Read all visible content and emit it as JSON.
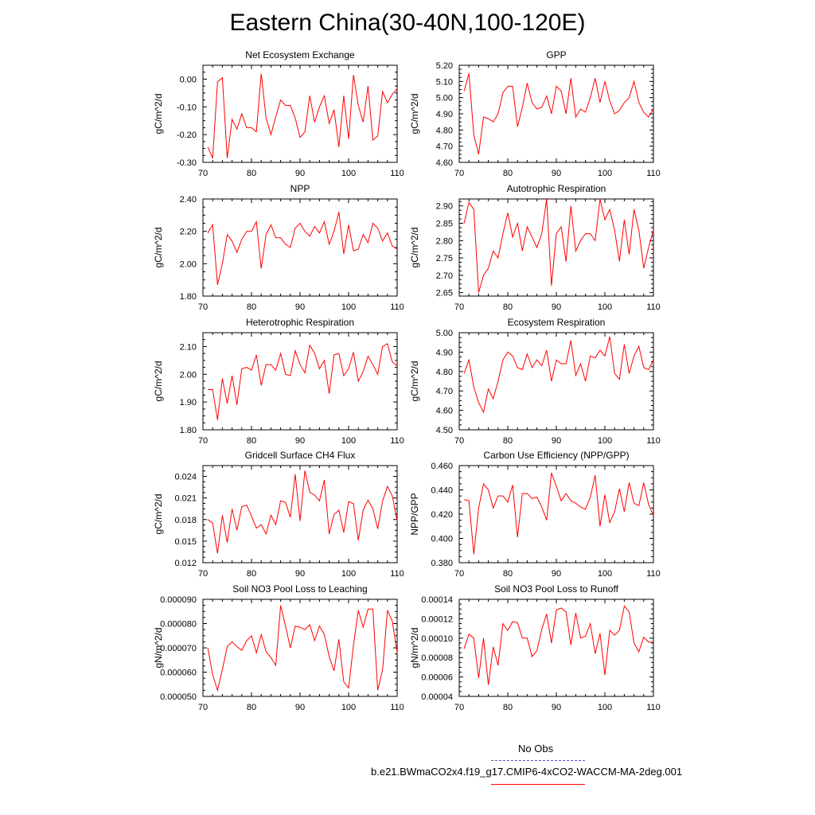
{
  "title": "Eastern China(30-40N,100-120E)",
  "colors": {
    "series": "#ff0000",
    "obs": "#5555cc",
    "axis": "#000000"
  },
  "legend": {
    "obs_label": "No Obs",
    "model_label": "b.e21.BWmaCO2x4.f19_g17.CMIP6-4xCO2-WACCM-MA-2deg.001"
  },
  "chart_data": [
    {
      "type": "line",
      "title": "Net Ecosystem Exchange",
      "xlabel": "",
      "ylabel": "gC/m^2/d",
      "xlim": [
        70,
        110
      ],
      "ylim": [
        -0.3,
        0.05
      ],
      "xticks": [
        70,
        80,
        90,
        100,
        110
      ],
      "yticks": [
        -0.3,
        -0.2,
        -0.1,
        0.0
      ],
      "yticklabels": [
        "-0.30",
        "-0.20",
        "-0.10",
        "0.00"
      ],
      "x_start": 71,
      "values": [
        -0.245,
        -0.285,
        -0.01,
        0.005,
        -0.285,
        -0.145,
        -0.18,
        -0.125,
        -0.175,
        -0.175,
        -0.19,
        0.02,
        -0.14,
        -0.2,
        -0.135,
        -0.075,
        -0.095,
        -0.095,
        -0.14,
        -0.21,
        -0.19,
        -0.06,
        -0.155,
        -0.1,
        -0.06,
        -0.16,
        -0.11,
        -0.245,
        -0.06,
        -0.215,
        0.015,
        -0.095,
        -0.155,
        -0.025,
        -0.22,
        -0.205,
        -0.045,
        -0.085,
        -0.055,
        -0.035
      ]
    },
    {
      "type": "line",
      "title": "GPP",
      "xlabel": "",
      "ylabel": "gC/m^2/d",
      "xlim": [
        70,
        110
      ],
      "ylim": [
        4.6,
        5.2
      ],
      "xticks": [
        70,
        80,
        90,
        100,
        110
      ],
      "yticks": [
        4.6,
        4.7,
        4.8,
        4.9,
        5.0,
        5.1,
        5.2
      ],
      "yticklabels": [
        "4.60",
        "4.70",
        "4.80",
        "4.90",
        "5.00",
        "5.10",
        "5.20"
      ],
      "x_start": 71,
      "values": [
        5.04,
        5.15,
        4.77,
        4.65,
        4.88,
        4.87,
        4.85,
        4.9,
        5.03,
        5.07,
        5.07,
        4.82,
        4.94,
        5.09,
        4.97,
        4.93,
        4.94,
        5.01,
        4.9,
        5.07,
        5.04,
        4.9,
        5.12,
        4.88,
        4.93,
        4.91,
        5.0,
        5.12,
        4.97,
        5.1,
        4.98,
        4.9,
        4.92,
        4.97,
        5.0,
        5.1,
        4.97,
        4.91,
        4.88,
        4.93
      ]
    },
    {
      "type": "line",
      "title": "NPP",
      "xlabel": "",
      "ylabel": "gC/m^2/d",
      "xlim": [
        70,
        110
      ],
      "ylim": [
        1.8,
        2.4
      ],
      "xticks": [
        70,
        80,
        90,
        100,
        110
      ],
      "yticks": [
        1.8,
        2.0,
        2.2,
        2.4
      ],
      "yticklabels": [
        "1.80",
        "2.00",
        "2.20",
        "2.40"
      ],
      "x_start": 71,
      "values": [
        2.19,
        2.24,
        1.87,
        2.0,
        2.18,
        2.14,
        2.07,
        2.15,
        2.2,
        2.2,
        2.26,
        1.97,
        2.18,
        2.24,
        2.16,
        2.16,
        2.12,
        2.1,
        2.22,
        2.25,
        2.2,
        2.17,
        2.23,
        2.19,
        2.26,
        2.12,
        2.2,
        2.32,
        2.06,
        2.24,
        2.08,
        2.09,
        2.18,
        2.13,
        2.25,
        2.22,
        2.14,
        2.19,
        2.11,
        2.09
      ]
    },
    {
      "type": "line",
      "title": "Autotrophic Respiration",
      "xlabel": "",
      "ylabel": "gC/m^2/d",
      "xlim": [
        70,
        110
      ],
      "ylim": [
        2.64,
        2.92
      ],
      "xticks": [
        70,
        80,
        90,
        100,
        110
      ],
      "yticks": [
        2.65,
        2.7,
        2.75,
        2.8,
        2.85,
        2.9
      ],
      "yticklabels": [
        "2.65",
        "2.70",
        "2.75",
        "2.80",
        "2.85",
        "2.90"
      ],
      "x_start": 71,
      "values": [
        2.85,
        2.91,
        2.89,
        2.65,
        2.7,
        2.72,
        2.77,
        2.75,
        2.82,
        2.88,
        2.81,
        2.85,
        2.77,
        2.84,
        2.81,
        2.78,
        2.82,
        2.92,
        2.67,
        2.82,
        2.84,
        2.74,
        2.9,
        2.77,
        2.8,
        2.82,
        2.82,
        2.8,
        2.92,
        2.86,
        2.89,
        2.83,
        2.74,
        2.86,
        2.76,
        2.89,
        2.83,
        2.72,
        2.78,
        2.83
      ]
    },
    {
      "type": "line",
      "title": "Heterotrophic Respiration",
      "xlabel": "",
      "ylabel": "gC/m^2/d",
      "xlim": [
        70,
        110
      ],
      "ylim": [
        1.8,
        2.15
      ],
      "xticks": [
        70,
        80,
        90,
        100,
        110
      ],
      "yticks": [
        1.8,
        1.9,
        2.0,
        2.1
      ],
      "yticklabels": [
        "1.80",
        "1.90",
        "2.00",
        "2.10"
      ],
      "x_start": 71,
      "values": [
        1.945,
        1.945,
        1.835,
        1.985,
        1.895,
        1.995,
        1.89,
        2.02,
        2.025,
        2.015,
        2.07,
        1.96,
        2.035,
        2.035,
        2.015,
        2.075,
        2.0,
        1.995,
        2.085,
        2.035,
        2.005,
        2.105,
        2.075,
        2.02,
        2.05,
        1.93,
        2.07,
        2.075,
        1.995,
        2.02,
        2.08,
        1.975,
        2.01,
        2.065,
        2.035,
        2.0,
        2.1,
        2.11,
        2.045,
        2.03
      ]
    },
    {
      "type": "line",
      "title": "Ecosystem Respiration",
      "xlabel": "",
      "ylabel": "gC/m^2/d",
      "xlim": [
        70,
        110
      ],
      "ylim": [
        4.5,
        5.0
      ],
      "xticks": [
        70,
        80,
        90,
        100,
        110
      ],
      "yticks": [
        4.5,
        4.6,
        4.7,
        4.8,
        4.9,
        5.0
      ],
      "yticklabels": [
        "4.50",
        "4.60",
        "4.70",
        "4.80",
        "4.90",
        "5.00"
      ],
      "x_start": 71,
      "values": [
        4.79,
        4.86,
        4.72,
        4.64,
        4.59,
        4.71,
        4.66,
        4.75,
        4.86,
        4.9,
        4.88,
        4.82,
        4.81,
        4.89,
        4.82,
        4.86,
        4.83,
        4.91,
        4.75,
        4.86,
        4.84,
        4.84,
        4.96,
        4.78,
        4.84,
        4.75,
        4.88,
        4.87,
        4.91,
        4.88,
        4.98,
        4.79,
        4.76,
        4.94,
        4.79,
        4.88,
        4.93,
        4.82,
        4.81,
        4.86
      ]
    },
    {
      "type": "line",
      "title": "Gridcell Surface CH4 Flux",
      "xlabel": "",
      "ylabel": "gC/m^2/d",
      "xlim": [
        70,
        110
      ],
      "ylim": [
        0.012,
        0.0255
      ],
      "xticks": [
        70,
        80,
        90,
        100,
        110
      ],
      "yticks": [
        0.012,
        0.015,
        0.018,
        0.021,
        0.024
      ],
      "yticklabels": [
        "0.012",
        "0.015",
        "0.018",
        "0.021",
        "0.024"
      ],
      "x_start": 71,
      "values": [
        0.018,
        0.0175,
        0.0133,
        0.0186,
        0.0148,
        0.0195,
        0.0165,
        0.0198,
        0.02,
        0.0185,
        0.0168,
        0.0173,
        0.016,
        0.0186,
        0.0173,
        0.0206,
        0.0204,
        0.0183,
        0.0243,
        0.0178,
        0.0248,
        0.0218,
        0.0214,
        0.0206,
        0.0235,
        0.016,
        0.0187,
        0.0193,
        0.0162,
        0.0205,
        0.0202,
        0.0151,
        0.0193,
        0.0207,
        0.0195,
        0.0167,
        0.0206,
        0.0226,
        0.0213,
        0.0178
      ]
    },
    {
      "type": "line",
      "title": "Carbon Use Efficiency (NPP/GPP)",
      "xlabel": "",
      "ylabel": "NPP/GPP",
      "xlim": [
        70,
        110
      ],
      "ylim": [
        0.38,
        0.46
      ],
      "xticks": [
        70,
        80,
        90,
        100,
        110
      ],
      "yticks": [
        0.38,
        0.4,
        0.42,
        0.44,
        0.46
      ],
      "yticklabels": [
        "0.380",
        "0.400",
        "0.420",
        "0.440",
        "0.460"
      ],
      "x_start": 71,
      "values": [
        0.432,
        0.431,
        0.387,
        0.425,
        0.445,
        0.44,
        0.425,
        0.435,
        0.435,
        0.43,
        0.444,
        0.401,
        0.437,
        0.437,
        0.433,
        0.434,
        0.426,
        0.415,
        0.454,
        0.443,
        0.431,
        0.437,
        0.431,
        0.429,
        0.426,
        0.424,
        0.434,
        0.452,
        0.41,
        0.436,
        0.413,
        0.422,
        0.441,
        0.422,
        0.446,
        0.429,
        0.427,
        0.446,
        0.428,
        0.419
      ]
    },
    {
      "type": "line",
      "title": "Soil NO3 Pool Loss to Leaching",
      "xlabel": "",
      "ylabel": "gN/m^2/d",
      "xlim": [
        70,
        110
      ],
      "ylim": [
        5e-05,
        9e-05
      ],
      "xticks": [
        70,
        80,
        90,
        100,
        110
      ],
      "yticks": [
        5e-05,
        6e-05,
        7e-05,
        8e-05,
        9e-05
      ],
      "yticklabels": [
        "0.000050",
        "0.000060",
        "0.000070",
        "0.000080",
        "0.000090"
      ],
      "x_start": 71,
      "values": [
        7e-05,
        5.9e-05,
        5.25e-05,
        6.1e-05,
        7.05e-05,
        7.25e-05,
        7.05e-05,
        6.9e-05,
        7.3e-05,
        7.5e-05,
        6.8e-05,
        7.55e-05,
        6.85e-05,
        6.6e-05,
        6.28e-05,
        8.75e-05,
        7.9e-05,
        7e-05,
        7.9e-05,
        7.85e-05,
        7.75e-05,
        7.95e-05,
        7.3e-05,
        7.9e-05,
        7.55e-05,
        6.65e-05,
        6.05e-05,
        7.35e-05,
        5.6e-05,
        5.35e-05,
        7.1e-05,
        8.55e-05,
        7.85e-05,
        8.6e-05,
        8.6e-05,
        5.25e-05,
        6.1e-05,
        8.55e-05,
        8.1e-05,
        6.8e-05
      ]
    },
    {
      "type": "line",
      "title": "Soil NO3 Pool Loss to Runoff",
      "xlabel": "",
      "ylabel": "gN/m^2/d",
      "xlim": [
        70,
        110
      ],
      "ylim": [
        4e-05,
        0.00014
      ],
      "xticks": [
        70,
        80,
        90,
        100,
        110
      ],
      "yticks": [
        4e-05,
        6e-05,
        8e-05,
        0.0001,
        0.00012,
        0.00014
      ],
      "yticklabels": [
        "0.00004",
        "0.00006",
        "0.00008",
        "0.00010",
        "0.00012",
        "0.00014"
      ],
      "x_start": 71,
      "values": [
        8.9e-05,
        0.000104,
        0.0001,
        5.9e-05,
        0.0001,
        5.2e-05,
        9.1e-05,
        7.2e-05,
        0.000115,
        0.000108,
        0.000117,
        0.000116,
        0.0001,
        0.0001,
        8.1e-05,
        8.7e-05,
        0.000109,
        0.000125,
        9.5e-05,
        0.000129,
        0.000131,
        0.000127,
        9.3e-05,
        0.000126,
        0.0001,
        0.000102,
        0.000115,
        8.4e-05,
        0.000105,
        6.2e-05,
        0.000108,
        0.000103,
        0.000108,
        0.000133,
        0.000127,
        9.5e-05,
        8.6e-05,
        0.000101,
        9.6e-05,
        9.6e-05
      ]
    }
  ]
}
